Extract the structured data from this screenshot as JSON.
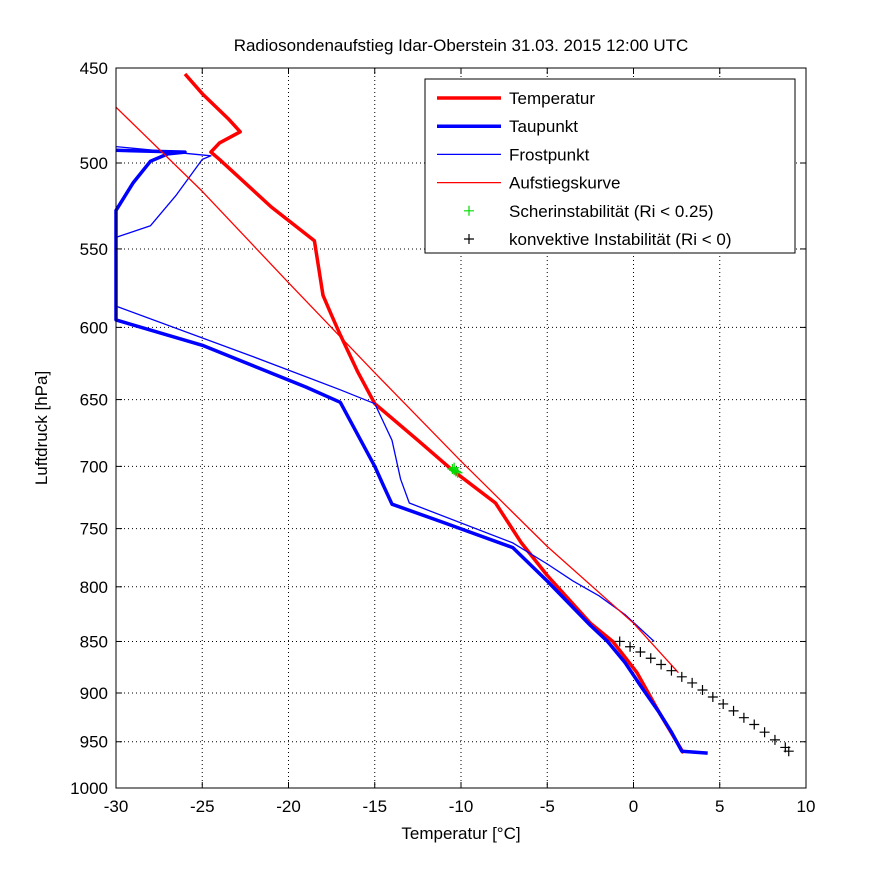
{
  "chart_data": {
    "type": "line",
    "title": "Radiosondenaufstieg Idar-Oberstein 31.03. 2015 12:00 UTC",
    "xlabel": "Temperatur [°C]",
    "ylabel": "Luftdruck [hPa]",
    "xlim": [
      -30,
      10
    ],
    "ylim": [
      450,
      1000
    ],
    "yscale": "log",
    "y_reversed": true,
    "grid": true,
    "xticks": [
      -30,
      -25,
      -20,
      -15,
      -10,
      -5,
      0,
      5,
      10
    ],
    "yticks": [
      450,
      500,
      550,
      600,
      650,
      700,
      750,
      800,
      850,
      900,
      950,
      1000
    ],
    "legend_position": "top-right",
    "series": [
      {
        "name": "Temperatur",
        "color": "#ff0000",
        "style": "thick",
        "points": [
          [
            2.9,
            962
          ],
          [
            1.5,
            920
          ],
          [
            0.2,
            880
          ],
          [
            -1.2,
            850
          ],
          [
            -2.5,
            833
          ],
          [
            -5.0,
            790
          ],
          [
            -6.5,
            762
          ],
          [
            -8.0,
            729
          ],
          [
            -10.5,
            703
          ],
          [
            -12.5,
            680
          ],
          [
            -15.0,
            653
          ],
          [
            -16.0,
            630
          ],
          [
            -17.0,
            605
          ],
          [
            -17.5,
            592
          ],
          [
            -18.0,
            579
          ],
          [
            -18.5,
            545
          ],
          [
            -21.0,
            525
          ],
          [
            -24.0,
            498
          ],
          [
            -24.5,
            494
          ],
          [
            -24.0,
            489
          ],
          [
            -22.8,
            483
          ],
          [
            -23.5,
            476
          ],
          [
            -25.0,
            463
          ],
          [
            -26.0,
            453
          ]
        ]
      },
      {
        "name": "Taupunkt",
        "color": "#0000ff",
        "style": "thick",
        "points": [
          [
            4.3,
            962
          ],
          [
            2.8,
            960
          ],
          [
            2.2,
            940
          ],
          [
            1.5,
            920
          ],
          [
            0.5,
            895
          ],
          [
            -0.5,
            870
          ],
          [
            -1.5,
            850
          ],
          [
            -2.5,
            835
          ],
          [
            -5.0,
            795
          ],
          [
            -7.0,
            766
          ],
          [
            -11.0,
            745
          ],
          [
            -14.0,
            730
          ],
          [
            -14.5,
            715
          ],
          [
            -15.0,
            700
          ],
          [
            -17.0,
            652
          ],
          [
            -19.0,
            641
          ],
          [
            -25.0,
            612
          ],
          [
            -30.0,
            595
          ],
          [
            -30.0,
            527
          ],
          [
            -29.0,
            511
          ],
          [
            -28.0,
            499
          ],
          [
            -27.0,
            495
          ],
          [
            -26.0,
            494
          ],
          [
            -30.0,
            493
          ]
        ]
      },
      {
        "name": "Frostpunkt",
        "color": "#0000ff",
        "style": "thin",
        "points": [
          [
            1.2,
            850
          ],
          [
            -0.5,
            825
          ],
          [
            -2.0,
            808
          ],
          [
            -3.5,
            795
          ],
          [
            -5.0,
            780
          ],
          [
            -7.0,
            762
          ],
          [
            -13.0,
            729
          ],
          [
            -13.5,
            710
          ],
          [
            -14.0,
            680
          ],
          [
            -15.0,
            653
          ],
          [
            -17.0,
            643
          ],
          [
            -22.0,
            620
          ],
          [
            -30.0,
            586
          ],
          [
            -30.0,
            543
          ],
          [
            -28.0,
            536
          ],
          [
            -26.5,
            518
          ],
          [
            -25.0,
            498
          ],
          [
            -24.5,
            496
          ],
          [
            -30.0,
            491
          ]
        ]
      },
      {
        "name": "Aufstiegskurve",
        "color": "#ff0000",
        "style": "thin",
        "points": [
          [
            2.6,
            880
          ],
          [
            0.0,
            833
          ],
          [
            -5.0,
            765
          ],
          [
            -10.0,
            696
          ],
          [
            -15.0,
            631
          ],
          [
            -20.0,
            571
          ],
          [
            -25.0,
            516
          ],
          [
            -30.0,
            470
          ]
        ]
      },
      {
        "name": "Scherinstabilität (Ri < 0.25)",
        "color": "#00dd00",
        "marker": "+",
        "points": [
          [
            -10.5,
            702
          ],
          [
            -10.4,
            703
          ],
          [
            -10.3,
            704
          ],
          [
            -10.2,
            705
          ],
          [
            -10.4,
            701
          ]
        ]
      },
      {
        "name": "konvektive Instabilität (Ri < 0)",
        "color": "#000000",
        "marker": "+",
        "points": [
          [
            -0.8,
            850
          ],
          [
            -0.2,
            855
          ],
          [
            0.4,
            860
          ],
          [
            1.0,
            866
          ],
          [
            1.6,
            872
          ],
          [
            2.2,
            878
          ],
          [
            2.8,
            884
          ],
          [
            3.4,
            890
          ],
          [
            4.0,
            897
          ],
          [
            4.6,
            904
          ],
          [
            5.2,
            911
          ],
          [
            5.8,
            918
          ],
          [
            6.4,
            925
          ],
          [
            7.0,
            932
          ],
          [
            7.6,
            940
          ],
          [
            8.2,
            948
          ],
          [
            8.8,
            956
          ],
          [
            9.0,
            960
          ]
        ]
      }
    ]
  }
}
